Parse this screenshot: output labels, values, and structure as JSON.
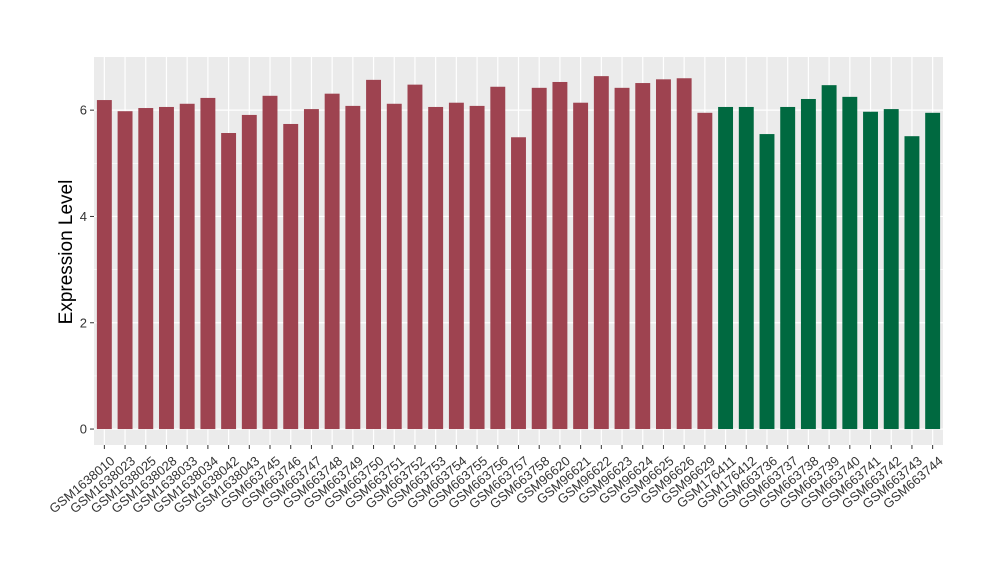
{
  "chart_data": {
    "type": "bar",
    "title": "",
    "xlabel": "",
    "ylabel": "Expression Level",
    "ylim": [
      -0.3,
      7.0
    ],
    "yticks": [
      0,
      2,
      4,
      6
    ],
    "grid": true,
    "legend": "none",
    "categories": [
      "GSM1638010",
      "GSM1638023",
      "GSM1638025",
      "GSM1638028",
      "GSM1638033",
      "GSM1638034",
      "GSM1638042",
      "GSM1638043",
      "GSM663745",
      "GSM663746",
      "GSM663747",
      "GSM663748",
      "GSM663749",
      "GSM663750",
      "GSM663751",
      "GSM663752",
      "GSM663753",
      "GSM663754",
      "GSM663755",
      "GSM663756",
      "GSM663757",
      "GSM663758",
      "GSM96620",
      "GSM96621",
      "GSM96622",
      "GSM96623",
      "GSM96624",
      "GSM96625",
      "GSM96626",
      "GSM96629",
      "GSM176411",
      "GSM176412",
      "GSM663736",
      "GSM663737",
      "GSM663738",
      "GSM663739",
      "GSM663740",
      "GSM663741",
      "GSM663742",
      "GSM663743",
      "GSM663744"
    ],
    "values": [
      6.19,
      5.98,
      6.04,
      6.06,
      6.12,
      6.23,
      5.57,
      5.91,
      6.27,
      5.74,
      6.02,
      6.31,
      6.08,
      6.57,
      6.12,
      6.48,
      6.06,
      6.14,
      6.08,
      6.44,
      5.49,
      6.42,
      6.53,
      6.14,
      6.64,
      6.42,
      6.51,
      6.58,
      6.6,
      5.95,
      6.06,
      6.06,
      5.55,
      6.06,
      6.21,
      6.47,
      6.25,
      5.97,
      6.02,
      5.51,
      5.95
    ],
    "colors": [
      "#9e4350",
      "#9e4350",
      "#9e4350",
      "#9e4350",
      "#9e4350",
      "#9e4350",
      "#9e4350",
      "#9e4350",
      "#9e4350",
      "#9e4350",
      "#9e4350",
      "#9e4350",
      "#9e4350",
      "#9e4350",
      "#9e4350",
      "#9e4350",
      "#9e4350",
      "#9e4350",
      "#9e4350",
      "#9e4350",
      "#9e4350",
      "#9e4350",
      "#9e4350",
      "#9e4350",
      "#9e4350",
      "#9e4350",
      "#9e4350",
      "#9e4350",
      "#9e4350",
      "#9e4350",
      "#006940",
      "#006940",
      "#006940",
      "#006940",
      "#006940",
      "#006940",
      "#006940",
      "#006940",
      "#006940",
      "#006940",
      "#006940"
    ],
    "panel_background": "#ebebeb",
    "grid_color": "#ffffff"
  }
}
